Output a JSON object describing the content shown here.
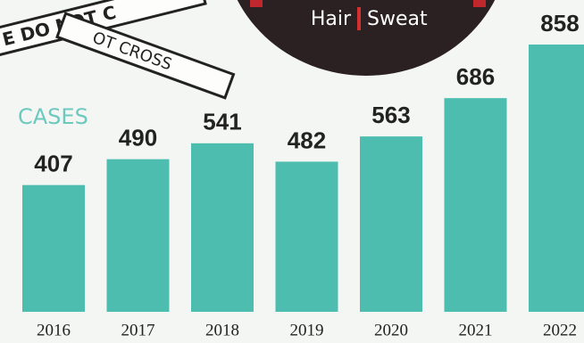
{
  "chart_data": {
    "type": "bar",
    "header": [
      "Hair",
      "Sweat"
    ],
    "label": "CASES",
    "annotations": [
      "E DO NOT C",
      "OT CROSS"
    ],
    "categories": [
      "2016",
      "2017",
      "2018",
      "2019",
      "2020",
      "2021",
      "2022"
    ],
    "values": [
      407,
      490,
      541,
      482,
      563,
      686,
      858
    ],
    "color": "#4dbdb0"
  }
}
